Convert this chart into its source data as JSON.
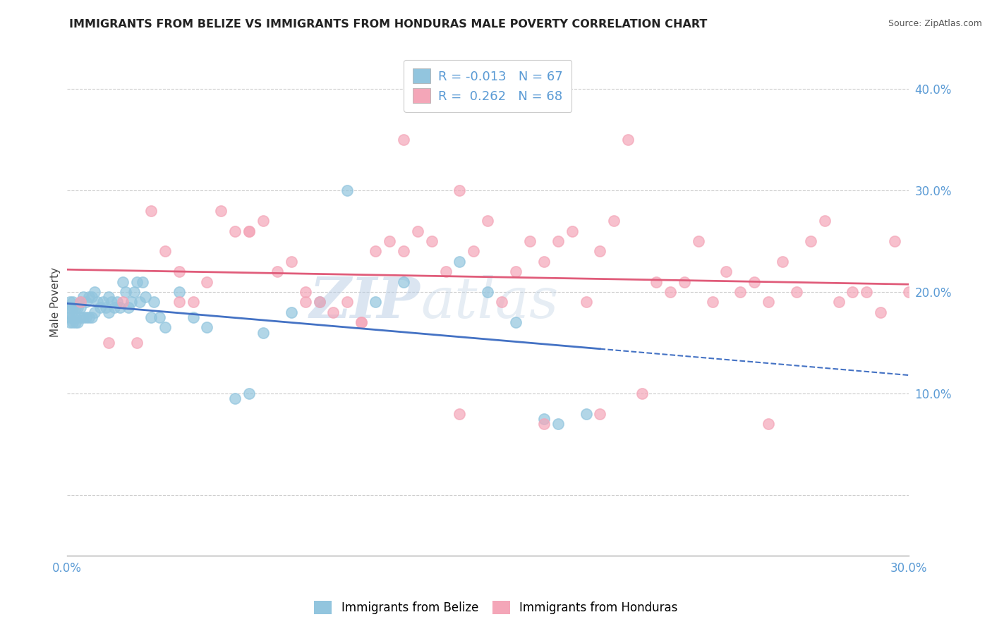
{
  "title": "IMMIGRANTS FROM BELIZE VS IMMIGRANTS FROM HONDURAS MALE POVERTY CORRELATION CHART",
  "source": "Source: ZipAtlas.com",
  "ylabel": "Male Poverty",
  "xlim": [
    0.0,
    0.3
  ],
  "ylim": [
    -0.06,
    0.44
  ],
  "belize_color": "#92C5DE",
  "belize_line_color": "#4472C4",
  "honduras_color": "#F4A6B8",
  "honduras_line_color": "#E05C7A",
  "belize_R": -0.013,
  "belize_N": 67,
  "honduras_R": 0.262,
  "honduras_N": 68,
  "watermark_zip": "ZIP",
  "watermark_atlas": "atlas",
  "grid_color": "#CCCCCC",
  "tick_color": "#5B9BD5",
  "belize_x": [
    0.001,
    0.001,
    0.001,
    0.001,
    0.001,
    0.002,
    0.002,
    0.002,
    0.002,
    0.003,
    0.003,
    0.003,
    0.004,
    0.004,
    0.005,
    0.005,
    0.005,
    0.006,
    0.006,
    0.007,
    0.007,
    0.008,
    0.008,
    0.009,
    0.009,
    0.01,
    0.01,
    0.011,
    0.012,
    0.013,
    0.014,
    0.015,
    0.015,
    0.016,
    0.017,
    0.018,
    0.019,
    0.02,
    0.021,
    0.022,
    0.023,
    0.024,
    0.025,
    0.026,
    0.027,
    0.028,
    0.03,
    0.031,
    0.033,
    0.035,
    0.04,
    0.045,
    0.05,
    0.06,
    0.065,
    0.07,
    0.08,
    0.09,
    0.1,
    0.11,
    0.12,
    0.14,
    0.15,
    0.16,
    0.17,
    0.175,
    0.185
  ],
  "belize_y": [
    0.19,
    0.185,
    0.18,
    0.175,
    0.17,
    0.19,
    0.185,
    0.175,
    0.17,
    0.185,
    0.175,
    0.17,
    0.185,
    0.17,
    0.19,
    0.185,
    0.175,
    0.195,
    0.175,
    0.19,
    0.175,
    0.195,
    0.175,
    0.195,
    0.175,
    0.2,
    0.18,
    0.19,
    0.185,
    0.19,
    0.185,
    0.195,
    0.18,
    0.19,
    0.185,
    0.19,
    0.185,
    0.21,
    0.2,
    0.185,
    0.19,
    0.2,
    0.21,
    0.19,
    0.21,
    0.195,
    0.175,
    0.19,
    0.175,
    0.165,
    0.2,
    0.175,
    0.165,
    0.095,
    0.1,
    0.16,
    0.18,
    0.19,
    0.3,
    0.19,
    0.21,
    0.23,
    0.2,
    0.17,
    0.075,
    0.07,
    0.08
  ],
  "honduras_x": [
    0.005,
    0.015,
    0.02,
    0.025,
    0.03,
    0.035,
    0.04,
    0.045,
    0.05,
    0.055,
    0.06,
    0.065,
    0.07,
    0.075,
    0.08,
    0.085,
    0.09,
    0.095,
    0.1,
    0.105,
    0.11,
    0.115,
    0.12,
    0.125,
    0.13,
    0.135,
    0.14,
    0.145,
    0.15,
    0.155,
    0.16,
    0.165,
    0.17,
    0.175,
    0.18,
    0.185,
    0.19,
    0.195,
    0.2,
    0.205,
    0.21,
    0.215,
    0.22,
    0.225,
    0.23,
    0.235,
    0.24,
    0.245,
    0.25,
    0.255,
    0.26,
    0.265,
    0.27,
    0.275,
    0.28,
    0.285,
    0.29,
    0.295,
    0.3,
    0.25,
    0.19,
    0.17,
    0.14,
    0.12,
    0.105,
    0.085,
    0.065,
    0.04
  ],
  "honduras_y": [
    0.19,
    0.15,
    0.19,
    0.15,
    0.28,
    0.24,
    0.22,
    0.19,
    0.21,
    0.28,
    0.26,
    0.26,
    0.27,
    0.22,
    0.23,
    0.2,
    0.19,
    0.18,
    0.19,
    0.17,
    0.24,
    0.25,
    0.24,
    0.26,
    0.25,
    0.22,
    0.3,
    0.24,
    0.27,
    0.19,
    0.22,
    0.25,
    0.23,
    0.25,
    0.26,
    0.19,
    0.24,
    0.27,
    0.35,
    0.1,
    0.21,
    0.2,
    0.21,
    0.25,
    0.19,
    0.22,
    0.2,
    0.21,
    0.19,
    0.23,
    0.2,
    0.25,
    0.27,
    0.19,
    0.2,
    0.2,
    0.18,
    0.25,
    0.2,
    0.07,
    0.08,
    0.07,
    0.08,
    0.35,
    0.17,
    0.19,
    0.26,
    0.19
  ]
}
